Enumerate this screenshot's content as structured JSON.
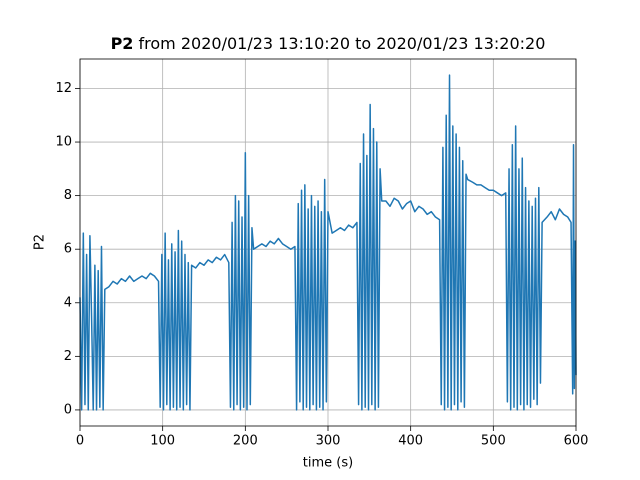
{
  "chart_data": {
    "type": "line",
    "title_bold": "P2",
    "title": "from 2020/01/23 13:10:20 to 2020/01/23 13:20:20",
    "x_label": "time (s)",
    "y_label": "P2",
    "color": "#1f77b4",
    "grid": true,
    "xlim": [
      0,
      600
    ],
    "ylim": [
      -0.6,
      13.1
    ],
    "xticks": [
      0,
      100,
      200,
      300,
      400,
      500,
      600
    ],
    "yticks": [
      0,
      2,
      4,
      6,
      8,
      10,
      12
    ],
    "x": [
      0,
      2,
      4,
      6,
      8,
      10,
      12,
      14,
      16,
      18,
      20,
      22,
      24,
      26,
      28,
      30,
      35,
      40,
      45,
      50,
      55,
      60,
      65,
      70,
      75,
      80,
      85,
      90,
      95,
      97,
      99,
      101,
      103,
      105,
      107,
      109,
      111,
      113,
      115,
      117,
      119,
      121,
      123,
      125,
      127,
      129,
      131,
      133,
      135,
      140,
      145,
      150,
      155,
      160,
      165,
      170,
      175,
      180,
      182,
      184,
      186,
      188,
      190,
      192,
      194,
      196,
      198,
      200,
      202,
      204,
      206,
      208,
      210,
      215,
      220,
      225,
      230,
      235,
      240,
      245,
      250,
      255,
      260,
      262,
      264,
      266,
      268,
      270,
      272,
      274,
      276,
      278,
      280,
      282,
      284,
      286,
      288,
      290,
      292,
      294,
      296,
      298,
      300,
      305,
      310,
      315,
      320,
      325,
      330,
      335,
      337,
      339,
      341,
      343,
      345,
      347,
      349,
      351,
      353,
      355,
      357,
      359,
      361,
      363,
      365,
      370,
      375,
      380,
      385,
      390,
      395,
      400,
      405,
      410,
      415,
      420,
      425,
      430,
      435,
      437,
      439,
      441,
      443,
      445,
      447,
      449,
      451,
      453,
      455,
      457,
      459,
      461,
      463,
      465,
      467,
      469,
      475,
      480,
      485,
      490,
      495,
      500,
      505,
      510,
      515,
      517,
      519,
      521,
      523,
      525,
      527,
      529,
      531,
      533,
      535,
      537,
      539,
      541,
      543,
      545,
      547,
      549,
      551,
      553,
      555,
      557,
      559,
      565,
      570,
      575,
      580,
      585,
      590,
      594,
      596,
      597,
      598,
      599,
      600
    ],
    "values": [
      4.2,
      0,
      6.6,
      0.2,
      5.8,
      0,
      6.5,
      3.5,
      0,
      5.4,
      0,
      5.2,
      0.1,
      6.1,
      0,
      4.5,
      4.6,
      4.8,
      4.7,
      4.9,
      4.8,
      5.0,
      4.8,
      4.9,
      5.0,
      4.9,
      5.1,
      5.0,
      4.8,
      0.1,
      5.8,
      0,
      6.6,
      0.2,
      5.6,
      0,
      6.2,
      0.1,
      5.9,
      0,
      6.7,
      0.1,
      6.3,
      0,
      5.8,
      0.2,
      5.5,
      0,
      5.4,
      5.3,
      5.5,
      5.4,
      5.6,
      5.5,
      5.7,
      5.6,
      5.8,
      5.5,
      0.1,
      7.0,
      0,
      8.0,
      0.2,
      7.8,
      0,
      7.2,
      0.1,
      9.6,
      0,
      8.0,
      0.2,
      6.8,
      6.0,
      6.1,
      6.2,
      6.1,
      6.3,
      6.2,
      6.4,
      6.2,
      6.1,
      6.0,
      6.1,
      0,
      7.7,
      0.3,
      8.2,
      0,
      8.4,
      0.1,
      7.5,
      0,
      8.0,
      0.2,
      7.6,
      0,
      7.8,
      0.1,
      7.4,
      0,
      8.6,
      0.3,
      7.4,
      6.6,
      6.7,
      6.8,
      6.7,
      6.9,
      6.8,
      7.0,
      0.2,
      9.2,
      0,
      10.3,
      0.1,
      9.5,
      0,
      11.4,
      0.2,
      10.5,
      0,
      10.0,
      0.1,
      9.0,
      7.8,
      7.8,
      7.6,
      7.9,
      7.8,
      7.5,
      7.7,
      7.8,
      7.4,
      7.6,
      7.5,
      7.3,
      7.4,
      7.2,
      7.1,
      0.2,
      9.8,
      0,
      11.0,
      0.1,
      12.5,
      0,
      10.6,
      0.2,
      10.3,
      0,
      9.8,
      0.3,
      9.3,
      0.1,
      8.8,
      8.6,
      8.5,
      8.4,
      8.4,
      8.3,
      8.2,
      8.2,
      8.1,
      8.0,
      8.1,
      0.3,
      9.0,
      0,
      9.9,
      0.1,
      10.6,
      0,
      9.0,
      0.2,
      9.4,
      0,
      8.3,
      0.2,
      7.8,
      0.1,
      7.6,
      0.4,
      7.9,
      0.2,
      8.3,
      1.0,
      7.0,
      7.2,
      7.4,
      7.1,
      7.5,
      7.3,
      7.2,
      7.0,
      0.6,
      9.9,
      0.8,
      6.3,
      1.3
    ]
  }
}
